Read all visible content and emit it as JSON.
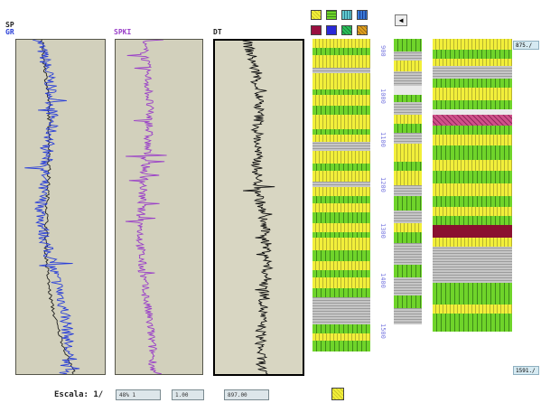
{
  "headers": {
    "sp": "SP",
    "gr": "GR",
    "sp_track": "SPKI",
    "dt": "DT"
  },
  "colors": {
    "gr": "#2a3fd8",
    "sp": "#222222",
    "spk": "#9a3fc8",
    "dt": "#111111",
    "track_bg": "#d2d0bc",
    "sand_yellow": "#f2ef3a",
    "shale_green": "#6fd42a",
    "gray": "#b8b8b8",
    "maroon": "#8a1030",
    "pink": "#d0508a",
    "depth_label": "#7a7ae0"
  },
  "depth_ticks": [
    "900",
    "1000",
    "1100",
    "1200",
    "1300",
    "1400",
    "1500"
  ],
  "palette": [
    "sand-yellow",
    "shale-green",
    "cyan-grid",
    "blue-grid",
    "maroon",
    "blue",
    "green",
    "orange"
  ],
  "scroll_button": "◀",
  "markers": {
    "top": "875./",
    "bottom": "1591./"
  },
  "footer": {
    "scale_label": "Escala: 1/",
    "scale_value": "48% 1",
    "field2": "1.00",
    "field3": "897.00"
  }
}
